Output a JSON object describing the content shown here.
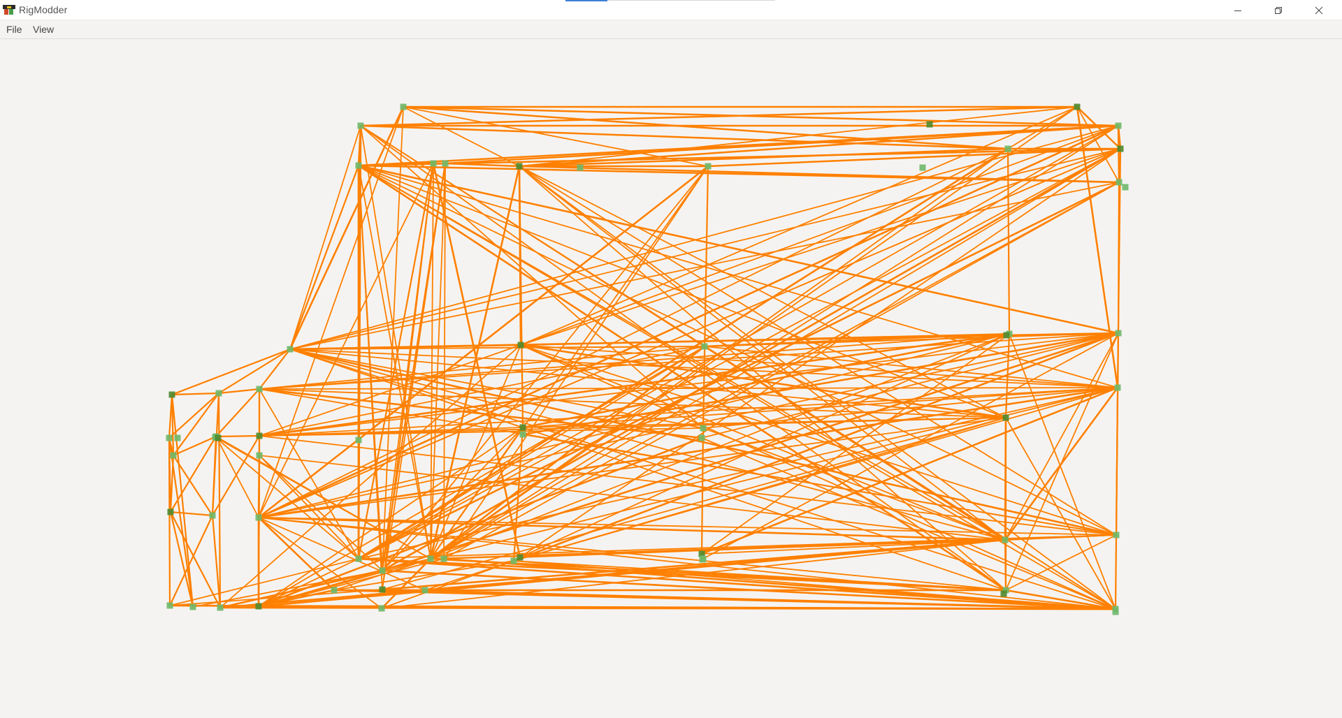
{
  "window": {
    "title": "RigModder",
    "app_icon": "rigmodder-logo-icon",
    "controls": {
      "minimize_icon": "minimize-icon",
      "maximize_icon": "restore-icon",
      "close_icon": "close-icon"
    }
  },
  "menu": {
    "items": [
      {
        "label": "File"
      },
      {
        "label": "View"
      }
    ]
  },
  "viewport": {
    "content": "node-graph",
    "colors": {
      "background": "#f5f3f1",
      "edge": "#ff8000",
      "node": "#6fb86a",
      "node_dark": "#4f8a2f"
    },
    "node_count": 68
  }
}
